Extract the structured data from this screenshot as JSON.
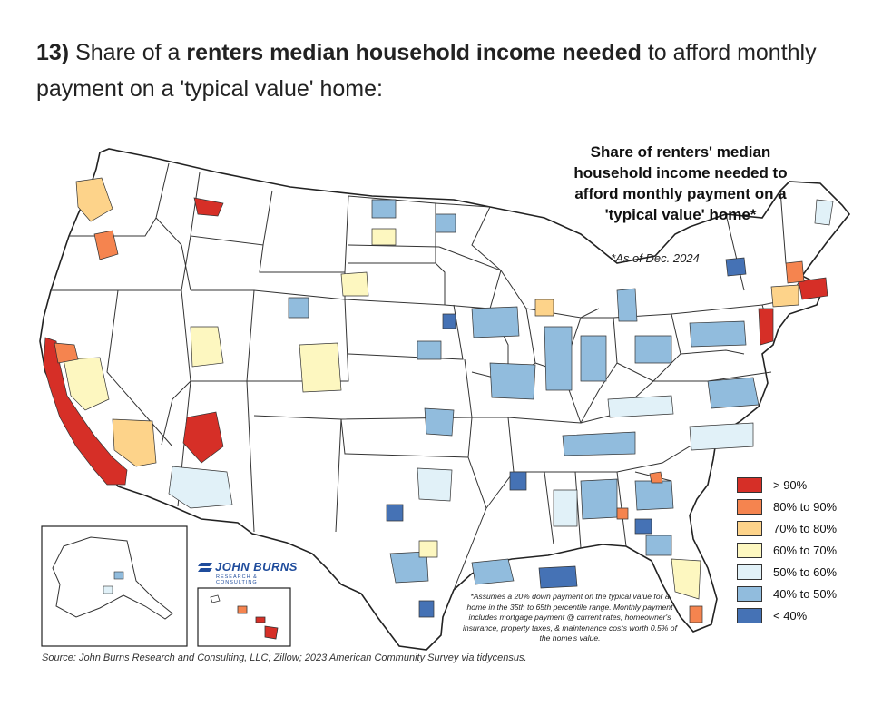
{
  "heading": {
    "number": "13)",
    "part1": " Share of a ",
    "bold": "renters median household income needed",
    "part2": " to afford monthly payment on a 'typical value' home:"
  },
  "map": {
    "title": "Share of renters' median household income needed to afford monthly payment on a 'typical value' home*",
    "as_of": "*As of Dec. 2024",
    "legend": [
      {
        "label": "> 90%",
        "color": "#d62f27"
      },
      {
        "label": "80% to 90%",
        "color": "#f5844f"
      },
      {
        "label": "70% to 80%",
        "color": "#fdd38a"
      },
      {
        "label": "60% to 70%",
        "color": "#fdf7c0"
      },
      {
        "label": "50% to 60%",
        "color": "#e1f1f8"
      },
      {
        "label": "40% to 50%",
        "color": "#91bcdd"
      },
      {
        "label": "< 40%",
        "color": "#4572b5"
      }
    ],
    "logo": {
      "name": "JOHN BURNS",
      "tagline": "RESEARCH & CONSULTING"
    },
    "footnote": "*Assumes a 20% down payment on the typical value for a home in the 35th to 65th percentile range. Monthly payment includes mortgage payment @ current rates, homeowner's insurance, property taxes, & maintenance costs worth 0.5% of the home's value.",
    "source": "Source: John Burns Research and Consulting, LLC; Zillow; 2023 American Community Survey via tidycensus.",
    "colors": {
      "state_border": "#222222",
      "land": "#ffffff"
    }
  }
}
